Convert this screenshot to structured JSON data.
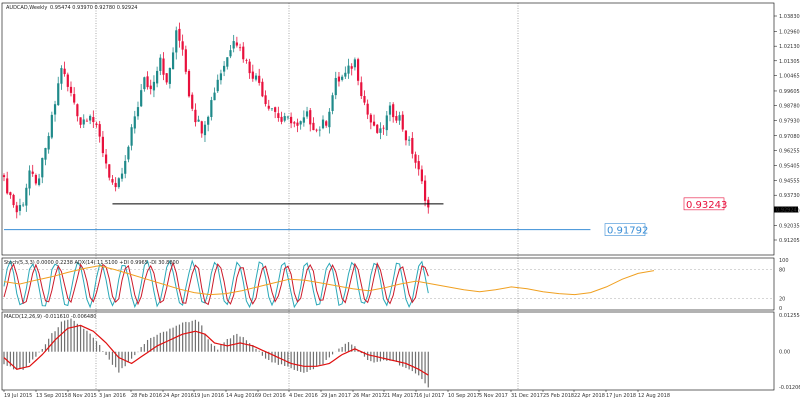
{
  "chart_data": [
    {
      "type": "candlestick",
      "title": "AUDCAD,Weekly",
      "ohlc_text": "0.95474 0.93970 0.92780 0.92924",
      "price_ticks": [
        "1.03830",
        "1.02960",
        "1.02130",
        "1.01305",
        "1.00465",
        "0.99605",
        "0.98780",
        "0.97930",
        "0.97080",
        "0.96255",
        "0.95405",
        "0.94555",
        "0.93730",
        "0.92880",
        "0.92035",
        "0.91205"
      ],
      "ylim": [
        0.91205,
        1.0383
      ],
      "current_price": "0.92924",
      "levels": [
        {
          "label": "0.93243",
          "value": 0.93243,
          "color": "#000000",
          "label_color": "#e8103c",
          "from_index": 34,
          "to_index": 134
        },
        {
          "label": "0.91792",
          "value": 0.91792,
          "color": "#3a8ed6",
          "label_color": "#3a8ed6",
          "from_index": 0,
          "to_index": 118
        }
      ],
      "colors": {
        "up": "#1f8a8a",
        "down": "#e8103c"
      },
      "candle_count": 134,
      "close_path": [
        [
          0,
          0.945
        ],
        [
          2,
          0.937
        ],
        [
          4,
          0.928
        ],
        [
          6,
          0.934
        ],
        [
          8,
          0.951
        ],
        [
          10,
          0.942
        ],
        [
          13,
          0.962
        ],
        [
          16,
          0.989
        ],
        [
          18,
          1.01
        ],
        [
          20,
          0.998
        ],
        [
          22,
          0.99
        ],
        [
          24,
          0.978
        ],
        [
          27,
          0.984
        ],
        [
          30,
          0.969
        ],
        [
          33,
          0.949
        ],
        [
          35,
          0.939
        ],
        [
          38,
          0.955
        ],
        [
          41,
          0.982
        ],
        [
          44,
          1.002
        ],
        [
          46,
          0.997
        ],
        [
          49,
          1.016
        ],
        [
          51,
          0.999
        ],
        [
          54,
          1.028
        ],
        [
          56,
          1.021
        ],
        [
          58,
          0.995
        ],
        [
          60,
          0.981
        ],
        [
          62,
          0.975
        ],
        [
          64,
          0.984
        ],
        [
          67,
          1.003
        ],
        [
          70,
          1.015
        ],
        [
          72,
          1.027
        ],
        [
          74,
          1.02
        ],
        [
          77,
          1.008
        ],
        [
          80,
          1.001
        ],
        [
          82,
          0.99
        ],
        [
          84,
          0.987
        ],
        [
          87,
          0.979
        ],
        [
          90,
          0.98
        ],
        [
          92,
          0.975
        ],
        [
          95,
          0.982
        ],
        [
          98,
          0.974
        ],
        [
          101,
          0.979
        ],
        [
          104,
          1.001
        ],
        [
          107,
          1.005
        ],
        [
          110,
          1.013
        ],
        [
          112,
          0.996
        ],
        [
          114,
          0.983
        ],
        [
          116,
          0.974
        ],
        [
          118,
          0.972
        ],
        [
          121,
          0.985
        ],
        [
          124,
          0.981
        ],
        [
          126,
          0.97
        ],
        [
          128,
          0.962
        ],
        [
          130,
          0.95
        ],
        [
          132,
          0.937
        ],
        [
          133,
          0.93
        ]
      ],
      "x_ticks": [
        {
          "label": "19 Jul 2015",
          "index": 0
        },
        {
          "label": "13 Sep 2015",
          "index": 7
        },
        {
          "label": "8 Nov 2015",
          "index": 15
        },
        {
          "label": "3 Jan 2016",
          "index": 23
        },
        {
          "label": "28 Feb 2016",
          "index": 31
        },
        {
          "label": "24 Apr 2016",
          "index": 39
        },
        {
          "label": "19 Jun 2016",
          "index": 47
        },
        {
          "label": "14 Aug 2016",
          "index": 55
        },
        {
          "label": "9 Oct 2016",
          "index": 63
        },
        {
          "label": "4 Dec 2016",
          "index": 71
        },
        {
          "label": "29 Jan 2017",
          "index": 79
        },
        {
          "label": "26 Mar 2017",
          "index": 87
        },
        {
          "label": "21 May 2017",
          "index": 95
        },
        {
          "label": "16 Jul 2017",
          "index": 103
        },
        {
          "label": "10 Sep 2017",
          "index": 111
        },
        {
          "label": "5 Nov 2017",
          "index": 119
        },
        {
          "label": "31 Dec 2017",
          "index": 127
        },
        {
          "label": "25 Feb 2018",
          "index": 135
        },
        {
          "label": "22 Apr 2018",
          "index": 143
        },
        {
          "label": "17 Jun 2018",
          "index": 151
        },
        {
          "label": "12 Aug 2018",
          "index": 159
        }
      ],
      "period_separators": [
        23,
        71,
        127
      ]
    },
    {
      "type": "line",
      "title": "Stoch(5,3,3) 0.0000 0.2238  ADX(14) 11.5100 +DI 0.9965 -DI 30.8800",
      "ylim": [
        0,
        100
      ],
      "levels": [
        {
          "label": "80",
          "value": 80
        },
        {
          "label": "20",
          "value": 20
        }
      ],
      "tick_labels": [
        "100",
        "80",
        "20",
        "0"
      ],
      "series": [
        {
          "color": "#2aa8b8",
          "periods": 7.2,
          "phase": 0.0,
          "mid": 50,
          "amp": 46
        },
        {
          "color": "#cc1a2a",
          "periods": 7.2,
          "phase": -0.9,
          "mid": 50,
          "amp": 40
        },
        {
          "color": "#f0a020",
          "values": [
            55,
            50,
            58,
            65,
            74,
            82,
            88,
            80,
            70,
            60,
            50,
            40,
            32,
            28,
            30,
            36,
            44,
            52,
            60,
            58,
            52,
            46,
            40,
            36,
            42,
            50,
            56,
            50,
            44,
            38,
            34,
            38,
            44,
            40,
            34,
            30,
            28,
            32,
            44,
            60,
            72,
            78
          ]
        }
      ]
    },
    {
      "type": "bar",
      "title": "MACD(12,26,9) -0.011610 -0.006480",
      "ylim": [
        -0.01206,
        0.012554
      ],
      "tick_labels": [
        "0.012554",
        "0.00",
        "-0.012060"
      ],
      "histogram_color": "#707070",
      "signal_color": "#e01010",
      "histogram_path": [
        [
          0,
          -0.004
        ],
        [
          3,
          -0.006
        ],
        [
          6,
          -0.006
        ],
        [
          9,
          -0.003
        ],
        [
          12,
          0.001
        ],
        [
          15,
          0.006
        ],
        [
          18,
          0.01
        ],
        [
          21,
          0.011
        ],
        [
          24,
          0.009
        ],
        [
          27,
          0.006
        ],
        [
          30,
          0.002
        ],
        [
          33,
          -0.003
        ],
        [
          36,
          -0.007
        ],
        [
          39,
          -0.004
        ],
        [
          42,
          0.0
        ],
        [
          45,
          0.004
        ],
        [
          48,
          0.006
        ],
        [
          51,
          0.007
        ],
        [
          54,
          0.009
        ],
        [
          57,
          0.01
        ],
        [
          60,
          0.011
        ],
        [
          62,
          0.009
        ],
        [
          64,
          0.004
        ],
        [
          67,
          0.001
        ],
        [
          70,
          0.004
        ],
        [
          73,
          0.006
        ],
        [
          76,
          0.004
        ],
        [
          79,
          0.001
        ],
        [
          82,
          -0.002
        ],
        [
          85,
          -0.004
        ],
        [
          88,
          -0.005
        ],
        [
          91,
          -0.006
        ],
        [
          94,
          -0.007
        ],
        [
          97,
          -0.006
        ],
        [
          100,
          -0.004
        ],
        [
          103,
          -0.001
        ],
        [
          106,
          0.002
        ],
        [
          108,
          0.003
        ],
        [
          110,
          0.002
        ],
        [
          113,
          -0.002
        ],
        [
          116,
          -0.004
        ],
        [
          119,
          -0.003
        ],
        [
          122,
          -0.003
        ],
        [
          125,
          -0.005
        ],
        [
          128,
          -0.007
        ],
        [
          131,
          -0.009
        ],
        [
          133,
          -0.012
        ]
      ],
      "signal_path": [
        [
          0,
          -0.002
        ],
        [
          4,
          -0.006
        ],
        [
          8,
          -0.005
        ],
        [
          12,
          -0.001
        ],
        [
          16,
          0.004
        ],
        [
          20,
          0.008
        ],
        [
          24,
          0.009
        ],
        [
          28,
          0.007
        ],
        [
          32,
          0.003
        ],
        [
          36,
          -0.002
        ],
        [
          40,
          -0.004
        ],
        [
          44,
          -0.001
        ],
        [
          48,
          0.002
        ],
        [
          52,
          0.004
        ],
        [
          56,
          0.006
        ],
        [
          60,
          0.007
        ],
        [
          63,
          0.006
        ],
        [
          66,
          0.003
        ],
        [
          70,
          0.002
        ],
        [
          74,
          0.003
        ],
        [
          78,
          0.002
        ],
        [
          82,
          0.0
        ],
        [
          86,
          -0.002
        ],
        [
          90,
          -0.004
        ],
        [
          94,
          -0.005
        ],
        [
          98,
          -0.005
        ],
        [
          102,
          -0.004
        ],
        [
          106,
          -0.001
        ],
        [
          110,
          0.001
        ],
        [
          114,
          -0.001
        ],
        [
          118,
          -0.002
        ],
        [
          122,
          -0.003
        ],
        [
          126,
          -0.004
        ],
        [
          130,
          -0.006
        ],
        [
          133,
          -0.008
        ]
      ]
    }
  ]
}
